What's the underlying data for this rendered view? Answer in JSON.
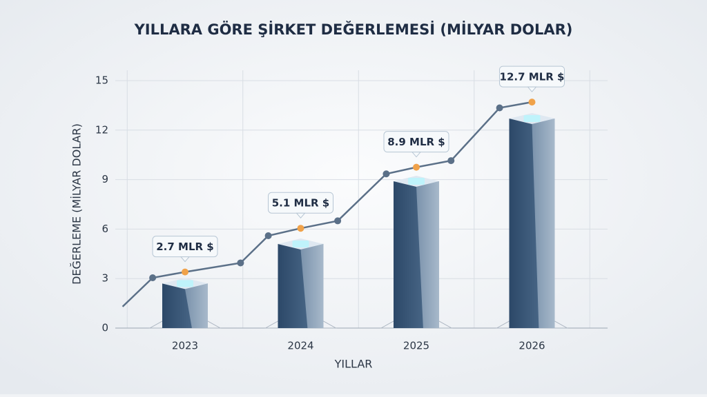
{
  "chart_data": {
    "type": "bar",
    "title": "YILLARA GÖRE ŞİRKET DEĞERLEMESİ (MİLYAR DOLAR)",
    "x_label": "YILLAR",
    "y_label": "DEĞERLEME (MİLYAR DOLAR)",
    "categories": [
      "2023",
      "2024",
      "2025",
      "2026"
    ],
    "values": [
      2.7,
      5.1,
      8.9,
      12.7
    ],
    "value_labels": [
      "2.7 MLR $",
      "5.1 MLR $",
      "8.9 MLR $",
      "12.7 MLR $"
    ],
    "color": "#3f5c7d",
    "ylim": [
      0,
      15
    ],
    "yticks": [
      0,
      3,
      6,
      9,
      12,
      15
    ],
    "grid": true,
    "trend": {
      "x": [
        2022.46,
        2022.72,
        2023,
        2023.48,
        2023.72,
        2024,
        2024.32,
        2024.74,
        2025,
        2025.3,
        2025.72,
        2026
      ],
      "values": [
        1.3,
        3.05,
        3.4,
        3.95,
        5.6,
        6.05,
        6.5,
        9.35,
        9.75,
        10.15,
        13.35,
        13.7
      ],
      "color": "#5b7088",
      "highlight_color": "#f0a24a"
    }
  }
}
